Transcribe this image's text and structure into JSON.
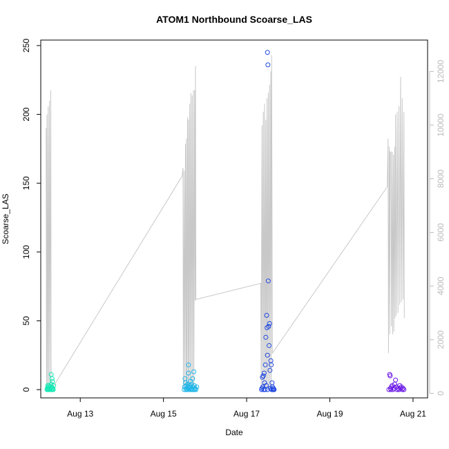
{
  "chart_data": {
    "type": "scatter",
    "title": "ATOM1 Northbound Scoarse_LAS",
    "xlabel": "Date",
    "ylabel": "Scoarse_LAS",
    "x_ticks": [
      "Aug 13",
      "Aug 15",
      "Aug 17",
      "Aug 19",
      "Aug 21"
    ],
    "x_tick_days": [
      13,
      15,
      17,
      19,
      21
    ],
    "xlim": [
      12.05,
      21.35
    ],
    "ylim": [
      -6,
      254
    ],
    "y_ticks": [
      0,
      50,
      100,
      150,
      200,
      250
    ],
    "y2lim": [
      -170,
      13170
    ],
    "y2_ticks": [
      0,
      2000,
      4000,
      6000,
      8000,
      10000,
      12000
    ],
    "colors": {
      "secondary_series": "#c8c8c8",
      "secondary_axis": "#bbbbbb",
      "frame": "#000000"
    },
    "series": [
      {
        "color": "#19e8b6",
        "points": [
          [
            12.2,
            0
          ],
          [
            12.21,
            1
          ],
          [
            12.22,
            3
          ],
          [
            12.22,
            0
          ],
          [
            12.23,
            2
          ],
          [
            12.24,
            0
          ],
          [
            12.25,
            1
          ],
          [
            12.25,
            3
          ],
          [
            12.26,
            0
          ],
          [
            12.27,
            2
          ],
          [
            12.28,
            0
          ],
          [
            12.29,
            1
          ],
          [
            12.3,
            11
          ],
          [
            12.3,
            4
          ],
          [
            12.31,
            0
          ],
          [
            12.31,
            2
          ],
          [
            12.32,
            8
          ],
          [
            12.33,
            0
          ],
          [
            12.33,
            6
          ],
          [
            12.34,
            1
          ],
          [
            12.35,
            0
          ],
          [
            12.36,
            3
          ]
        ]
      },
      {
        "color": "#1fb6e8",
        "points": [
          [
            15.5,
            0
          ],
          [
            15.51,
            2
          ],
          [
            15.52,
            8
          ],
          [
            15.53,
            5
          ],
          [
            15.54,
            0
          ],
          [
            15.55,
            3
          ],
          [
            15.56,
            1
          ],
          [
            15.57,
            0
          ],
          [
            15.58,
            4
          ],
          [
            15.59,
            2
          ],
          [
            15.6,
            18
          ],
          [
            15.6,
            12
          ],
          [
            15.61,
            1
          ],
          [
            15.62,
            0
          ],
          [
            15.63,
            3
          ],
          [
            15.64,
            2
          ],
          [
            15.65,
            6
          ],
          [
            15.66,
            0
          ],
          [
            15.67,
            4
          ],
          [
            15.68,
            1
          ],
          [
            15.69,
            0
          ],
          [
            15.7,
            8
          ],
          [
            15.71,
            2
          ],
          [
            15.72,
            0
          ],
          [
            15.73,
            13
          ],
          [
            15.74,
            3
          ],
          [
            15.75,
            0
          ],
          [
            15.76,
            1
          ],
          [
            15.78,
            0
          ],
          [
            15.8,
            2
          ]
        ]
      },
      {
        "color": "#1e46e0",
        "points": [
          [
            17.36,
            0
          ],
          [
            17.37,
            1
          ],
          [
            17.38,
            9
          ],
          [
            17.39,
            2
          ],
          [
            17.4,
            10
          ],
          [
            17.41,
            0
          ],
          [
            17.42,
            12
          ],
          [
            17.43,
            5
          ],
          [
            17.44,
            0
          ],
          [
            17.45,
            18
          ],
          [
            17.46,
            38
          ],
          [
            17.47,
            3
          ],
          [
            17.48,
            54
          ],
          [
            17.49,
            45
          ],
          [
            17.5,
            0
          ],
          [
            17.5,
            25
          ],
          [
            17.51,
            236
          ],
          [
            17.5,
            245
          ],
          [
            17.52,
            79
          ],
          [
            17.53,
            46
          ],
          [
            17.54,
            32
          ],
          [
            17.55,
            48
          ],
          [
            17.56,
            14
          ],
          [
            17.57,
            1
          ],
          [
            17.58,
            21
          ],
          [
            17.59,
            18
          ],
          [
            17.6,
            0
          ],
          [
            17.61,
            5
          ],
          [
            17.62,
            2
          ],
          [
            17.63,
            0
          ],
          [
            17.64,
            1
          ],
          [
            17.65,
            0
          ],
          [
            17.66,
            0
          ]
        ]
      },
      {
        "color": "#6a17e6",
        "points": [
          [
            20.42,
            0
          ],
          [
            20.44,
            11
          ],
          [
            20.45,
            10
          ],
          [
            20.46,
            1
          ],
          [
            20.47,
            0
          ],
          [
            20.48,
            2
          ],
          [
            20.5,
            3
          ],
          [
            20.52,
            0
          ],
          [
            20.54,
            1
          ],
          [
            20.56,
            4
          ],
          [
            20.58,
            7
          ],
          [
            20.6,
            2
          ],
          [
            20.62,
            0
          ],
          [
            20.64,
            1
          ],
          [
            20.66,
            0
          ],
          [
            20.68,
            3
          ],
          [
            20.7,
            1
          ],
          [
            20.72,
            2
          ],
          [
            20.74,
            0
          ],
          [
            20.76,
            1
          ],
          [
            20.78,
            0
          ]
        ]
      }
    ],
    "secondary_series": [
      [
        12.18,
        9900
      ],
      [
        12.19,
        200
      ],
      [
        12.2,
        10400
      ],
      [
        12.21,
        300
      ],
      [
        12.23,
        10700
      ],
      [
        12.24,
        200
      ],
      [
        12.26,
        10900
      ],
      [
        12.27,
        300
      ],
      [
        12.29,
        11300
      ],
      [
        12.3,
        250
      ],
      [
        12.35,
        250
      ],
      [
        15.45,
        8100
      ],
      [
        15.47,
        8400
      ],
      [
        15.48,
        200
      ],
      [
        15.5,
        8300
      ],
      [
        15.51,
        200
      ],
      [
        15.53,
        9300
      ],
      [
        15.54,
        200
      ],
      [
        15.55,
        9500
      ],
      [
        15.56,
        200
      ],
      [
        15.58,
        10300
      ],
      [
        15.59,
        200
      ],
      [
        15.6,
        10200
      ],
      [
        15.61,
        200
      ],
      [
        15.63,
        10800
      ],
      [
        15.64,
        200
      ],
      [
        15.66,
        11200
      ],
      [
        15.67,
        200
      ],
      [
        15.69,
        11100
      ],
      [
        15.7,
        200
      ],
      [
        15.72,
        11300
      ],
      [
        15.73,
        200
      ],
      [
        15.75,
        11300
      ],
      [
        15.76,
        3450
      ],
      [
        15.77,
        12200
      ],
      [
        15.78,
        3500
      ],
      [
        17.34,
        4100
      ],
      [
        17.35,
        200
      ],
      [
        17.37,
        10000
      ],
      [
        17.38,
        200
      ],
      [
        17.4,
        10500
      ],
      [
        17.41,
        200
      ],
      [
        17.43,
        10800
      ],
      [
        17.44,
        200
      ],
      [
        17.46,
        10200
      ],
      [
        17.47,
        200
      ],
      [
        17.49,
        11000
      ],
      [
        17.5,
        200
      ],
      [
        17.52,
        11200
      ],
      [
        17.53,
        200
      ],
      [
        17.55,
        11500
      ],
      [
        17.56,
        200
      ],
      [
        17.58,
        12000
      ],
      [
        17.59,
        200
      ],
      [
        17.6,
        12600
      ],
      [
        17.62,
        1500
      ],
      [
        20.38,
        7700
      ],
      [
        20.4,
        9500
      ],
      [
        20.41,
        1500
      ],
      [
        20.43,
        9200
      ],
      [
        20.44,
        2200
      ],
      [
        20.45,
        9000
      ],
      [
        20.47,
        9000
      ],
      [
        20.48,
        2500
      ],
      [
        20.5,
        9000
      ],
      [
        20.51,
        2200
      ],
      [
        20.53,
        8900
      ],
      [
        20.54,
        2300
      ],
      [
        20.56,
        9200
      ],
      [
        20.57,
        2800
      ],
      [
        20.58,
        10400
      ],
      [
        20.6,
        2900
      ],
      [
        20.62,
        10500
      ],
      [
        20.64,
        3000
      ],
      [
        20.66,
        10700
      ],
      [
        20.68,
        3300
      ],
      [
        20.7,
        11800
      ],
      [
        20.72,
        3400
      ],
      [
        20.74,
        11000
      ],
      [
        20.76,
        3500
      ],
      [
        20.78,
        10500
      ],
      [
        20.79,
        2800
      ]
    ]
  }
}
